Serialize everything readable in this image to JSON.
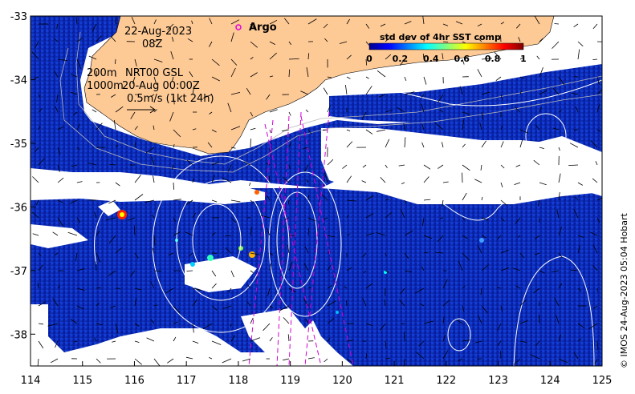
{
  "map": {
    "date": "22-Aug-2023",
    "hour": "08Z",
    "legend_label": "Argo",
    "isobath_shallow": "200m",
    "isobath_deep": "1000m",
    "product": "NRT00 GSL",
    "product_time": "20-Aug 00:00Z",
    "vector_scale": "0.5m/s (1kt 24h)",
    "credit": "© IMOS 24-Aug-2023 05:04 Hobart",
    "lon_ticks": [
      "114",
      "115",
      "116",
      "117",
      "118",
      "119",
      "120",
      "121",
      "122",
      "123",
      "124",
      "125"
    ],
    "lat_ticks": [
      "-33",
      "-34",
      "-35",
      "-36",
      "-37",
      "-38"
    ],
    "lon_range": [
      114,
      125
    ],
    "lat_range": [
      -38.5,
      -33
    ],
    "colors": {
      "land": "#fdc995",
      "argo": "#e000e0",
      "track": "#d400d4"
    }
  },
  "colorbar": {
    "title": "std dev of 4hr SST comp",
    "ticks": [
      "0",
      "0.2",
      "0.4",
      "0.6",
      "0.8",
      "1"
    ],
    "range": [
      0,
      1
    ],
    "palette": [
      "#00008f",
      "#0000ff",
      "#0080ff",
      "#00ffff",
      "#80ff80",
      "#ffff00",
      "#ff8000",
      "#ff0000",
      "#800000"
    ]
  }
}
